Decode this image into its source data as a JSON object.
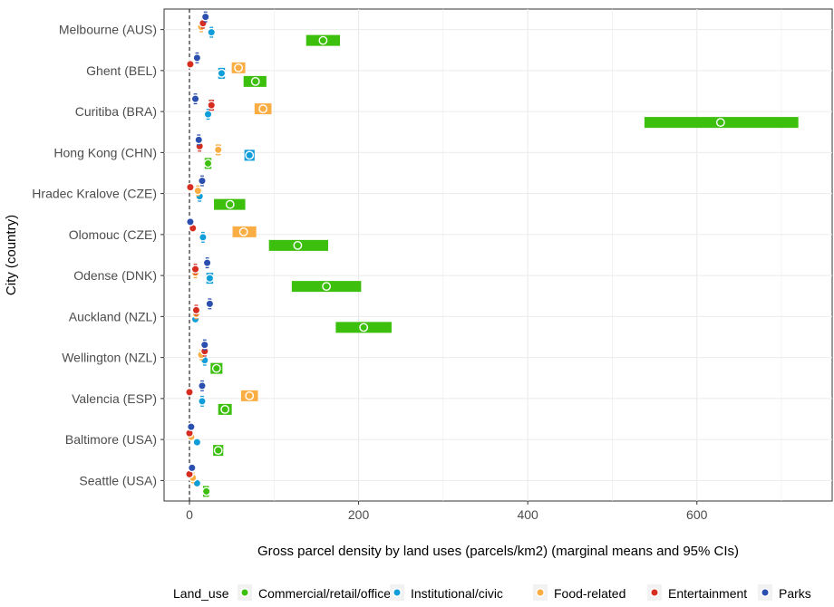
{
  "chart_data": {
    "type": "scatter",
    "title": "",
    "xlabel": "Gross parcel density by land uses (parcels/km2) (marginal means and 95% CIs)",
    "ylabel": "City (country)",
    "xlim": [
      -30,
      760
    ],
    "x_ticks": [
      0,
      200,
      400,
      600
    ],
    "reference_line_x": 0,
    "grid": true,
    "legend_position": "bottom",
    "legend_title": "Land_use",
    "categories": [
      "Melbourne (AUS)",
      "Ghent (BEL)",
      "Curitiba (BRA)",
      "Hong Kong (CHN)",
      "Hradec Kralove (CZE)",
      "Olomouc (CZE)",
      "Odense (DNK)",
      "Auckland (NZL)",
      "Wellington (NZL)",
      "Valencia (ESP)",
      "Baltimore (USA)",
      "Seattle (USA)"
    ],
    "series": [
      {
        "name": "Commercial/retail/office",
        "color": "#3dbf0e",
        "values": [
          158,
          78,
          628,
          22,
          48,
          128,
          162,
          206,
          32,
          42,
          34,
          20
        ],
        "ci": [
          [
            138,
            178
          ],
          [
            64,
            91
          ],
          [
            538,
            720
          ],
          [
            18,
            26
          ],
          [
            29,
            66
          ],
          [
            94,
            164
          ],
          [
            121,
            203
          ],
          [
            173,
            239
          ],
          [
            25,
            39
          ],
          [
            34,
            50
          ],
          [
            28,
            40
          ],
          [
            16,
            23
          ]
        ]
      },
      {
        "name": "Institutional/civic",
        "color": "#0f9ed9",
        "values": [
          26,
          38,
          22,
          71,
          12,
          16,
          24,
          7,
          18,
          15,
          9,
          9
        ],
        "ci": [
          [
            24,
            28
          ],
          [
            34,
            42
          ],
          [
            20,
            24
          ],
          [
            65,
            77
          ],
          [
            10,
            14
          ],
          [
            14,
            18
          ],
          [
            20,
            28
          ],
          [
            6,
            8
          ],
          [
            16,
            20
          ],
          [
            13,
            17
          ],
          [
            8,
            10
          ],
          [
            8,
            10
          ]
        ]
      },
      {
        "name": "Food-related",
        "color": "#f9ad43",
        "values": [
          14,
          58,
          87,
          34,
          10,
          64,
          7,
          8,
          14,
          71,
          2,
          4
        ],
        "ci": [
          [
            12,
            16
          ],
          [
            50,
            66
          ],
          [
            77,
            97
          ],
          [
            31,
            37
          ],
          [
            8,
            12
          ],
          [
            51,
            79
          ],
          [
            5,
            9
          ],
          [
            6,
            10
          ],
          [
            12,
            16
          ],
          [
            61,
            81
          ],
          [
            1,
            3
          ],
          [
            2,
            6
          ]
        ]
      },
      {
        "name": "Entertainment",
        "color": "#d62d20",
        "values": [
          16,
          1,
          26,
          12,
          1,
          4,
          7,
          8,
          18,
          0,
          0,
          0
        ],
        "ci": [
          [
            14,
            18
          ],
          [
            0,
            2
          ],
          [
            23,
            29
          ],
          [
            10,
            14
          ],
          [
            0,
            2
          ],
          [
            3,
            5
          ],
          [
            5,
            9
          ],
          [
            6,
            10
          ],
          [
            16,
            20
          ],
          [
            0,
            1
          ],
          [
            0,
            1
          ],
          [
            0,
            1
          ]
        ]
      },
      {
        "name": "Parks",
        "color": "#2a4fae",
        "values": [
          19,
          9,
          7,
          11,
          15,
          1,
          21,
          24,
          18,
          15,
          2,
          3
        ],
        "ci": [
          [
            17,
            21
          ],
          [
            7,
            11
          ],
          [
            5,
            9
          ],
          [
            9,
            13
          ],
          [
            13,
            17
          ],
          [
            0,
            2
          ],
          [
            19,
            23
          ],
          [
            22,
            26
          ],
          [
            16,
            20
          ],
          [
            13,
            17
          ],
          [
            1,
            3
          ],
          [
            2,
            4
          ]
        ]
      }
    ]
  }
}
